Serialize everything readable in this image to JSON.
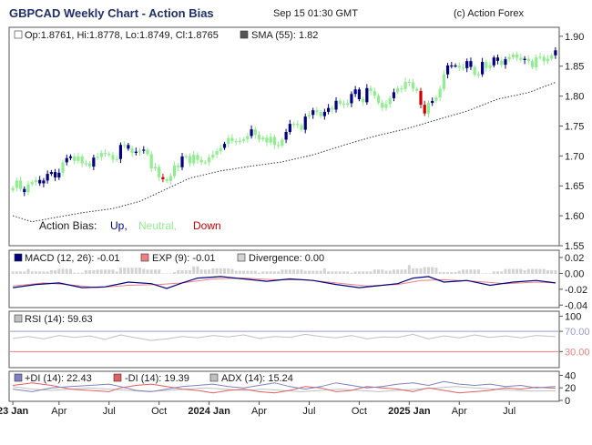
{
  "header": {
    "title": "GBPCAD Weekly Chart - Action Bias",
    "timestamp": "Sep 15 01:30 GMT",
    "copyright": "(c) Action Forex"
  },
  "colors": {
    "up": "#000080",
    "neutral": "#90ee90",
    "down": "#cc0000",
    "sma": "#333333",
    "macd": "#000080",
    "exp": "#f08080",
    "divergence": "#d3d3d3",
    "rsi": "#c0c0c0",
    "level_high": "#9999dd",
    "level_low": "#f08080",
    "plus_di": "#8080c0",
    "minus_di": "#e06060",
    "adx": "#c0c0c0"
  },
  "chart_data": [
    {
      "type": "candlestick",
      "panel": "price",
      "legend": {
        "ohlc": "Op:1.8761, Hi:1.8778, Lo:1.8749, Cl:1.8765",
        "sma": "SMA (55): 1.82"
      },
      "action_bias": {
        "label": "Action Bias:",
        "up": "Up,",
        "neutral": "Neutral,",
        "down": "Down"
      },
      "y_ticks": [
        "1.90",
        "1.85",
        "1.80",
        "1.75",
        "1.70",
        "1.65",
        "1.60",
        "1.55"
      ],
      "ylim": [
        1.55,
        1.915
      ],
      "x_labels": [
        "23 Jan",
        "Apr",
        "Jul",
        "Oct",
        "2024 Jan",
        "Apr",
        "Jul",
        "Oct",
        "2025 Jan",
        "Apr",
        "Jul"
      ],
      "x_label_bold": [
        true,
        false,
        false,
        false,
        true,
        false,
        false,
        false,
        true,
        false,
        false
      ],
      "x_label_week": [
        0,
        12,
        25,
        38,
        51,
        64,
        77,
        90,
        103,
        116,
        129
      ],
      "weeks": 142,
      "bias": [
        "N",
        "N",
        "N",
        "U",
        "N",
        "N",
        "N",
        "U",
        "U",
        "U",
        "U",
        "U",
        "U",
        "N",
        "U",
        "U",
        "N",
        "N",
        "N",
        "N",
        "N",
        "U",
        "N",
        "N",
        "N",
        "N",
        "N",
        "N",
        "U",
        "N",
        "U",
        "N",
        "U",
        "N",
        "U",
        "N",
        "N",
        "N",
        "N",
        "D",
        "N",
        "N",
        "N",
        "N",
        "U",
        "N",
        "N",
        "N",
        "N",
        "N",
        "N",
        "N",
        "N",
        "N",
        "N",
        "U",
        "N",
        "N",
        "N",
        "N",
        "N",
        "N",
        "U",
        "N",
        "N",
        "N",
        "N",
        "N",
        "N",
        "N",
        "N",
        "U",
        "U",
        "N",
        "N",
        "N",
        "U",
        "N",
        "U",
        "N",
        "N",
        "U",
        "U",
        "N",
        "U",
        "N",
        "N",
        "N",
        "U",
        "U",
        "U",
        "N",
        "U",
        "N",
        "N",
        "N",
        "N",
        "N",
        "N",
        "U",
        "N",
        "N",
        "N",
        "N",
        "N",
        "N",
        "D",
        "D",
        "N",
        "U",
        "N",
        "N",
        "N",
        "U",
        "U",
        "U",
        "N",
        "N",
        "U",
        "U",
        "N",
        "N",
        "U",
        "N",
        "N",
        "U",
        "U",
        "N",
        "U",
        "N",
        "N",
        "N",
        "N",
        "U",
        "N",
        "N",
        "N",
        "N",
        "N",
        "N",
        "N",
        "U"
      ],
      "close": [
        1.6465,
        1.6589,
        1.6448,
        1.6396,
        1.6526,
        1.6563,
        1.6598,
        1.6542,
        1.6589,
        1.67,
        1.6731,
        1.6641,
        1.6719,
        1.6894,
        1.6964,
        1.6994,
        1.6918,
        1.6991,
        1.6875,
        1.6878,
        1.6822,
        1.6971,
        1.6986,
        1.7052,
        1.7036,
        1.7015,
        1.6939,
        1.6949,
        1.7184,
        1.7183,
        1.7122,
        1.7051,
        1.7073,
        1.7089,
        1.7105,
        1.703,
        1.6793,
        1.6816,
        1.6645,
        1.6611,
        1.6581,
        1.6664,
        1.6843,
        1.6812,
        1.6992,
        1.6995,
        1.6877,
        1.7018,
        1.6935,
        1.6893,
        1.6894,
        1.6976,
        1.7022,
        1.708,
        1.7135,
        1.7202,
        1.73,
        1.7249,
        1.7246,
        1.7253,
        1.728,
        1.7333,
        1.7444,
        1.7354,
        1.7277,
        1.7305,
        1.7224,
        1.7319,
        1.7183,
        1.7172,
        1.7273,
        1.7401,
        1.7536,
        1.7536,
        1.7514,
        1.7438,
        1.7658,
        1.7686,
        1.7763,
        1.7734,
        1.7666,
        1.7738,
        1.7802,
        1.7774,
        1.7922,
        1.7873,
        1.7854,
        1.7881,
        1.8036,
        1.8111,
        1.7949,
        1.7898,
        1.8134,
        1.8083,
        1.8007,
        1.789,
        1.7804,
        1.7869,
        1.7966,
        1.8065,
        1.8129,
        1.8116,
        1.824,
        1.823,
        1.8123,
        1.8087,
        1.7855,
        1.771,
        1.7887,
        1.7919,
        1.7977,
        1.812,
        1.8364,
        1.8513,
        1.8512,
        1.8512,
        1.8476,
        1.8468,
        1.8585,
        1.8488,
        1.8358,
        1.8364,
        1.8571,
        1.8471,
        1.8514,
        1.8645,
        1.859,
        1.8524,
        1.8616,
        1.8651,
        1.8694,
        1.8642,
        1.8603,
        1.8624,
        1.8587,
        1.8483,
        1.8647,
        1.8658,
        1.8583,
        1.8625,
        1.8681,
        1.8765
      ],
      "sma_points": [
        [
          0,
          1.6
        ],
        [
          5,
          1.59
        ],
        [
          10,
          1.596
        ],
        [
          18,
          1.605
        ],
        [
          26,
          1.612
        ],
        [
          33,
          1.624
        ],
        [
          40,
          1.645
        ],
        [
          46,
          1.663
        ],
        [
          54,
          1.675
        ],
        [
          62,
          1.683
        ],
        [
          70,
          1.69
        ],
        [
          78,
          1.702
        ],
        [
          86,
          1.718
        ],
        [
          94,
          1.733
        ],
        [
          102,
          1.745
        ],
        [
          110,
          1.76
        ],
        [
          118,
          1.775
        ],
        [
          126,
          1.795
        ],
        [
          134,
          1.806
        ],
        [
          141,
          1.823
        ]
      ]
    },
    {
      "type": "line",
      "panel": "macd",
      "legend": {
        "macd": "MACD (12, 26): -0.01",
        "exp": "EXP (9): -0.01",
        "div": "Divergence: 0.00"
      },
      "y_ticks": [
        "0.02",
        "0.00",
        "-0.02",
        "-0.04"
      ],
      "ylim": [
        -0.042,
        0.028
      ],
      "macd_points": [
        [
          0,
          -0.018
        ],
        [
          6,
          -0.014
        ],
        [
          12,
          -0.012
        ],
        [
          18,
          -0.018
        ],
        [
          24,
          -0.017
        ],
        [
          30,
          -0.011
        ],
        [
          36,
          -0.013
        ],
        [
          40,
          -0.019
        ],
        [
          44,
          -0.012
        ],
        [
          48,
          -0.006
        ],
        [
          54,
          -0.004
        ],
        [
          60,
          -0.007
        ],
        [
          66,
          -0.01
        ],
        [
          72,
          -0.007
        ],
        [
          78,
          -0.009
        ],
        [
          84,
          -0.014
        ],
        [
          90,
          -0.018
        ],
        [
          96,
          -0.015
        ],
        [
          100,
          -0.013
        ],
        [
          104,
          -0.006
        ],
        [
          108,
          -0.004
        ],
        [
          112,
          -0.011
        ],
        [
          118,
          -0.009
        ],
        [
          124,
          -0.015
        ],
        [
          130,
          -0.011
        ],
        [
          136,
          -0.009
        ],
        [
          141,
          -0.012
        ]
      ],
      "exp_points": [
        [
          0,
          -0.016
        ],
        [
          8,
          -0.012
        ],
        [
          14,
          -0.014
        ],
        [
          22,
          -0.018
        ],
        [
          30,
          -0.015
        ],
        [
          38,
          -0.014
        ],
        [
          44,
          -0.012
        ],
        [
          52,
          -0.007
        ],
        [
          60,
          -0.006
        ],
        [
          68,
          -0.008
        ],
        [
          76,
          -0.008
        ],
        [
          84,
          -0.012
        ],
        [
          92,
          -0.016
        ],
        [
          100,
          -0.014
        ],
        [
          106,
          -0.009
        ],
        [
          112,
          -0.008
        ],
        [
          120,
          -0.01
        ],
        [
          128,
          -0.013
        ],
        [
          136,
          -0.011
        ],
        [
          141,
          -0.012
        ]
      ]
    },
    {
      "type": "line",
      "panel": "rsi",
      "legend": {
        "rsi": "RSI (14): 59.63"
      },
      "y_ticks": [
        "100",
        "70.00",
        "30.00"
      ],
      "ylim": [
        0,
        108
      ],
      "levels": [
        70,
        30
      ],
      "points": [
        [
          0,
          56
        ],
        [
          4,
          60
        ],
        [
          8,
          55
        ],
        [
          12,
          62
        ],
        [
          16,
          58
        ],
        [
          20,
          61
        ],
        [
          24,
          54
        ],
        [
          28,
          63
        ],
        [
          32,
          57
        ],
        [
          36,
          52
        ],
        [
          40,
          55
        ],
        [
          44,
          60
        ],
        [
          48,
          57
        ],
        [
          52,
          62
        ],
        [
          56,
          59
        ],
        [
          60,
          63
        ],
        [
          64,
          56
        ],
        [
          68,
          60
        ],
        [
          72,
          58
        ],
        [
          76,
          64
        ],
        [
          80,
          60
        ],
        [
          84,
          57
        ],
        [
          88,
          62
        ],
        [
          92,
          55
        ],
        [
          96,
          59
        ],
        [
          100,
          58
        ],
        [
          104,
          64
        ],
        [
          108,
          55
        ],
        [
          112,
          61
        ],
        [
          116,
          57
        ],
        [
          120,
          63
        ],
        [
          124,
          58
        ],
        [
          128,
          61
        ],
        [
          132,
          57
        ],
        [
          136,
          62
        ],
        [
          141,
          59.6
        ]
      ]
    },
    {
      "type": "line",
      "panel": "dmi",
      "legend": {
        "pdi": "+DI (14): 22.43",
        "mdi": "-DI (14): 19.39",
        "adx": "ADX (14): 15.24"
      },
      "y_ticks": [
        "40",
        "20",
        "0"
      ],
      "ylim": [
        0,
        45
      ],
      "pdi_points": [
        [
          0,
          18
        ],
        [
          5,
          14
        ],
        [
          10,
          20
        ],
        [
          15,
          22
        ],
        [
          20,
          24
        ],
        [
          25,
          26
        ],
        [
          28,
          22
        ],
        [
          32,
          16
        ],
        [
          36,
          14
        ],
        [
          40,
          18
        ],
        [
          44,
          22
        ],
        [
          48,
          24
        ],
        [
          52,
          26
        ],
        [
          56,
          22
        ],
        [
          60,
          20
        ],
        [
          64,
          24
        ],
        [
          68,
          28
        ],
        [
          72,
          22
        ],
        [
          76,
          18
        ],
        [
          80,
          22
        ],
        [
          84,
          28
        ],
        [
          88,
          24
        ],
        [
          92,
          20
        ],
        [
          96,
          22
        ],
        [
          100,
          26
        ],
        [
          104,
          28
        ],
        [
          108,
          24
        ],
        [
          112,
          30
        ],
        [
          116,
          26
        ],
        [
          120,
          24
        ],
        [
          124,
          26
        ],
        [
          128,
          22
        ],
        [
          132,
          24
        ],
        [
          136,
          20
        ],
        [
          141,
          22.4
        ]
      ],
      "mdi_points": [
        [
          0,
          24
        ],
        [
          5,
          28
        ],
        [
          10,
          24
        ],
        [
          15,
          18
        ],
        [
          20,
          16
        ],
        [
          25,
          14
        ],
        [
          28,
          20
        ],
        [
          32,
          24
        ],
        [
          36,
          26
        ],
        [
          40,
          22
        ],
        [
          44,
          18
        ],
        [
          48,
          16
        ],
        [
          52,
          12
        ],
        [
          56,
          16
        ],
        [
          60,
          18
        ],
        [
          64,
          14
        ],
        [
          68,
          12
        ],
        [
          72,
          16
        ],
        [
          76,
          22
        ],
        [
          80,
          20
        ],
        [
          84,
          14
        ],
        [
          88,
          16
        ],
        [
          92,
          22
        ],
        [
          96,
          20
        ],
        [
          100,
          18
        ],
        [
          104,
          14
        ],
        [
          108,
          20
        ],
        [
          112,
          16
        ],
        [
          116,
          12
        ],
        [
          120,
          14
        ],
        [
          124,
          16
        ],
        [
          128,
          20
        ],
        [
          132,
          18
        ],
        [
          136,
          21
        ],
        [
          141,
          19.4
        ]
      ],
      "adx_points": [
        [
          0,
          22
        ],
        [
          5,
          18
        ],
        [
          10,
          16
        ],
        [
          15,
          18
        ],
        [
          20,
          20
        ],
        [
          25,
          18
        ],
        [
          30,
          16
        ],
        [
          35,
          14
        ],
        [
          40,
          16
        ],
        [
          45,
          18
        ],
        [
          50,
          20
        ],
        [
          55,
          18
        ],
        [
          60,
          16
        ],
        [
          65,
          18
        ],
        [
          70,
          16
        ],
        [
          75,
          14
        ],
        [
          80,
          16
        ],
        [
          85,
          18
        ],
        [
          90,
          16
        ],
        [
          95,
          14
        ],
        [
          100,
          16
        ],
        [
          105,
          18
        ],
        [
          110,
          20
        ],
        [
          115,
          22
        ],
        [
          120,
          20
        ],
        [
          125,
          18
        ],
        [
          130,
          16
        ],
        [
          135,
          15
        ],
        [
          141,
          15.2
        ]
      ]
    }
  ]
}
